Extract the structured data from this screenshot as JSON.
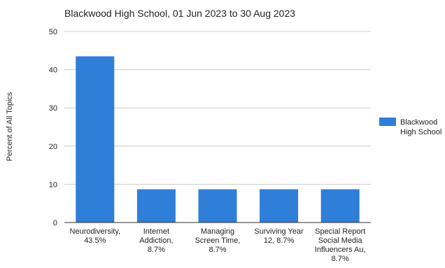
{
  "chart_data": {
    "type": "bar",
    "title": "Blackwood High School, 01 Jun 2023 to 30 Aug 2023",
    "ylabel": "Percent of All Topics",
    "xlabel": "",
    "ylim": [
      0,
      50
    ],
    "yticks": [
      0,
      10,
      20,
      30,
      40,
      50
    ],
    "grid": true,
    "legend_position": "right",
    "categories": [
      [
        "Neurodiversity,",
        "43.5%"
      ],
      [
        "Internet",
        "Addiction,",
        "8.7%"
      ],
      [
        "Managing",
        "Screen Time,",
        "8.7%"
      ],
      [
        "Surviving Year",
        "12, 8.7%"
      ],
      [
        "Special Report",
        "Social Media",
        "Influencers Au,",
        "8.7%"
      ]
    ],
    "series": [
      {
        "name": [
          "Blackwood",
          "High School"
        ],
        "color": "#2f7ed8",
        "values": [
          43.5,
          8.7,
          8.7,
          8.7,
          8.7
        ]
      }
    ]
  }
}
